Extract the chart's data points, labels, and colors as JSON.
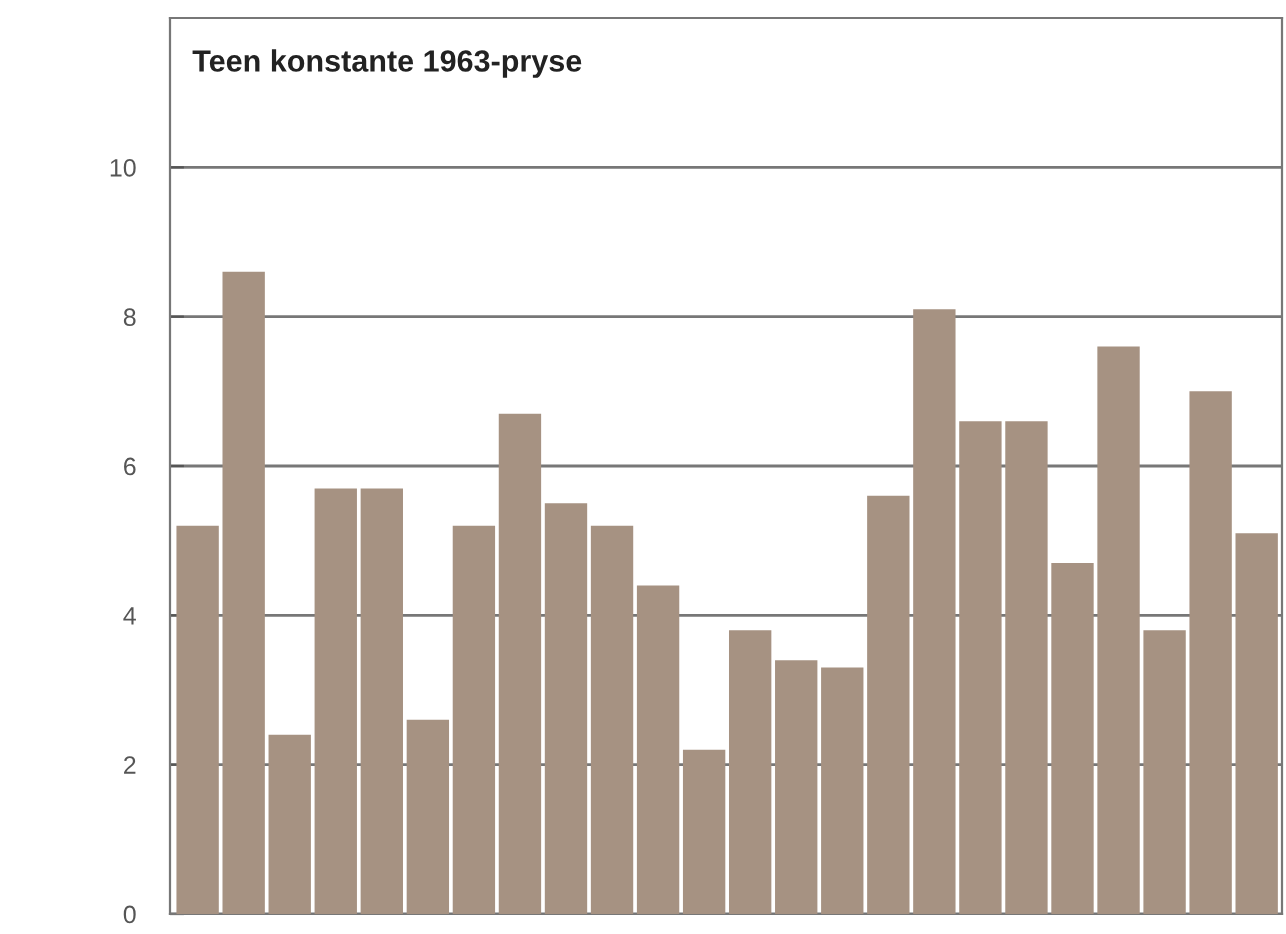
{
  "chart_data": {
    "type": "bar",
    "title": "Teen konstante 1963-pryse",
    "categories": [
      null,
      null,
      null,
      null,
      null,
      null,
      null,
      null,
      null,
      null,
      null,
      null,
      null,
      null,
      null,
      null,
      null,
      null,
      null,
      null,
      null,
      null,
      null,
      null
    ],
    "values": [
      5.2,
      8.6,
      2.4,
      5.7,
      5.7,
      2.6,
      5.2,
      6.7,
      5.5,
      5.2,
      4.4,
      2.2,
      3.8,
      3.4,
      3.3,
      5.6,
      8.1,
      6.6,
      6.6,
      4.7,
      7.6,
      3.8,
      7.0,
      5.1
    ],
    "color": "#a69282",
    "ylim": [
      0,
      12
    ],
    "yticks": [
      0,
      2,
      4,
      6,
      8,
      10
    ],
    "grid": "y"
  }
}
